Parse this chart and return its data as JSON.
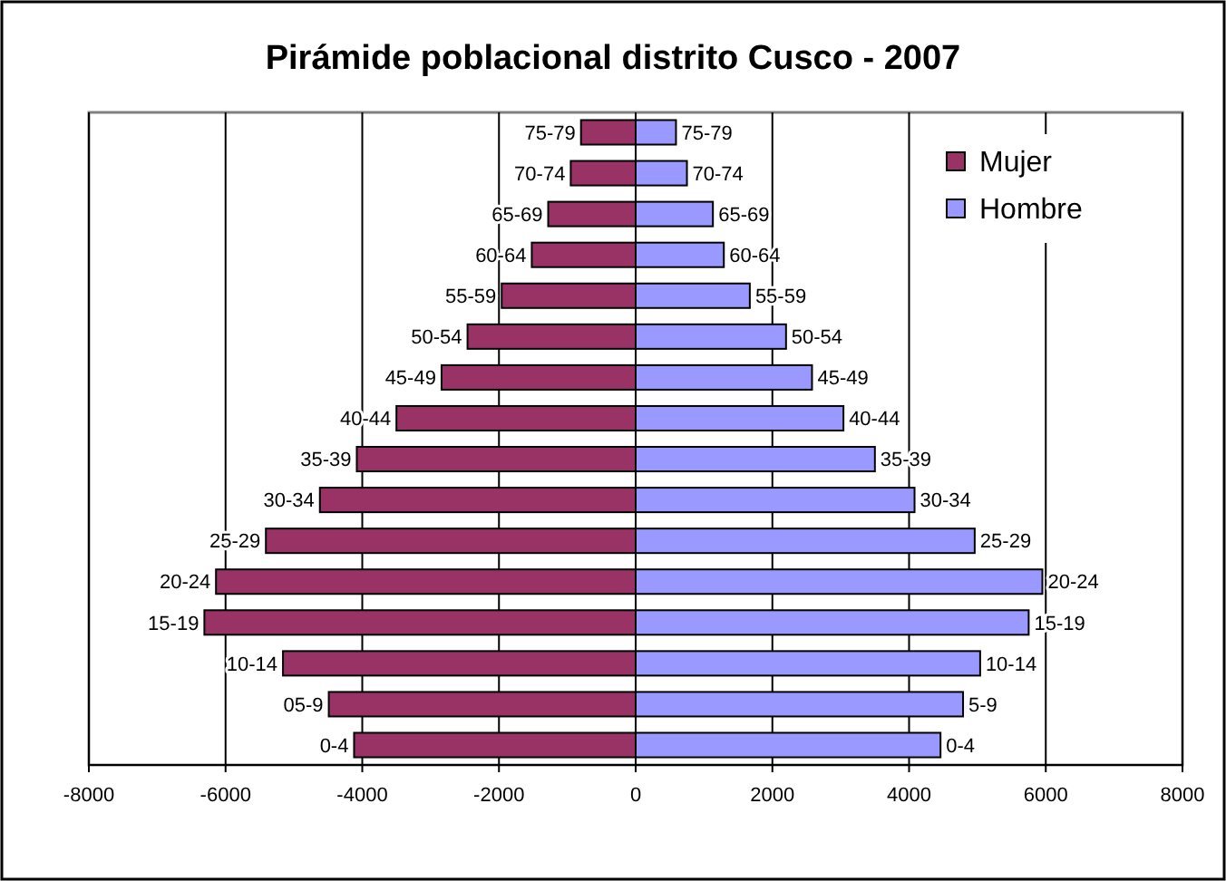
{
  "chart_data": {
    "type": "bar",
    "title": "Pirámide poblacional distrito Cusco - 2007",
    "orientation": "horizontal",
    "stacked": true,
    "categories": [
      null,
      null,
      null,
      null,
      null,
      null,
      null,
      null,
      null,
      null,
      null,
      null,
      null,
      null,
      null,
      null
    ],
    "series": [
      {
        "name": "Mujer",
        "color": "#993366",
        "values": [
          -800,
          -950,
          -1280,
          -1520,
          -1960,
          -2460,
          -2840,
          -3500,
          -4080,
          -4620,
          -5410,
          -6140,
          -6310,
          -5160,
          -4490,
          -4120
        ],
        "value_labels": [
          "75-79",
          "70-74",
          "65-69",
          "60-64",
          "55-59",
          "50-54",
          "45-49",
          "40-44",
          "35-39",
          "30-34",
          "25-29",
          "20-24",
          "15-19",
          "10-14",
          "05-9",
          "0-4"
        ]
      },
      {
        "name": "Hombre",
        "color": "#9999ff",
        "values": [
          590,
          750,
          1130,
          1290,
          1670,
          2200,
          2580,
          3040,
          3500,
          4080,
          4960,
          5950,
          5750,
          5040,
          4790,
          4460
        ],
        "value_labels": [
          "75-79",
          "70-74",
          "65-69",
          "60-64",
          "55-59",
          "50-54",
          "45-49",
          "40-44",
          "35-39",
          "30-34",
          "25-29",
          "20-24",
          "15-19",
          "10-14",
          "5-9",
          "0-4"
        ]
      }
    ],
    "xlim": [
      -8000,
      8000
    ],
    "xticks": [
      -8000,
      -6000,
      -4000,
      -2000,
      0,
      2000,
      4000,
      6000,
      8000
    ],
    "grid": "x",
    "legend": "top right"
  }
}
